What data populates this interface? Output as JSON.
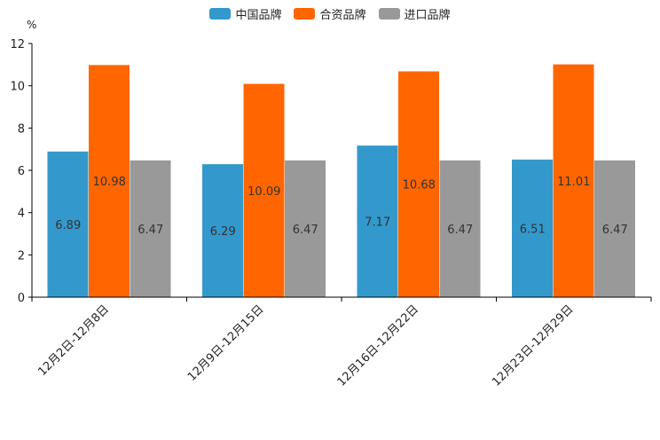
{
  "chart_data": {
    "type": "bar",
    "unit": "%",
    "categories": [
      "12月2日-12月8日",
      "12月9日-12月15日",
      "12月16日-12月22日",
      "12月23日-12月29日"
    ],
    "series": [
      {
        "name": "中国品牌",
        "color": "#3399cc",
        "values": [
          6.89,
          6.29,
          7.17,
          6.51
        ]
      },
      {
        "name": "合资品牌",
        "color": "#ff6600",
        "values": [
          10.98,
          10.09,
          10.68,
          11.01
        ]
      },
      {
        "name": "进口品牌",
        "color": "#999999",
        "values": [
          6.47,
          6.47,
          6.47,
          6.47
        ]
      }
    ],
    "ylim": [
      0,
      12
    ],
    "yticks": [
      0,
      2,
      4,
      6,
      8,
      10,
      12
    ],
    "legend_position": "top-center"
  }
}
